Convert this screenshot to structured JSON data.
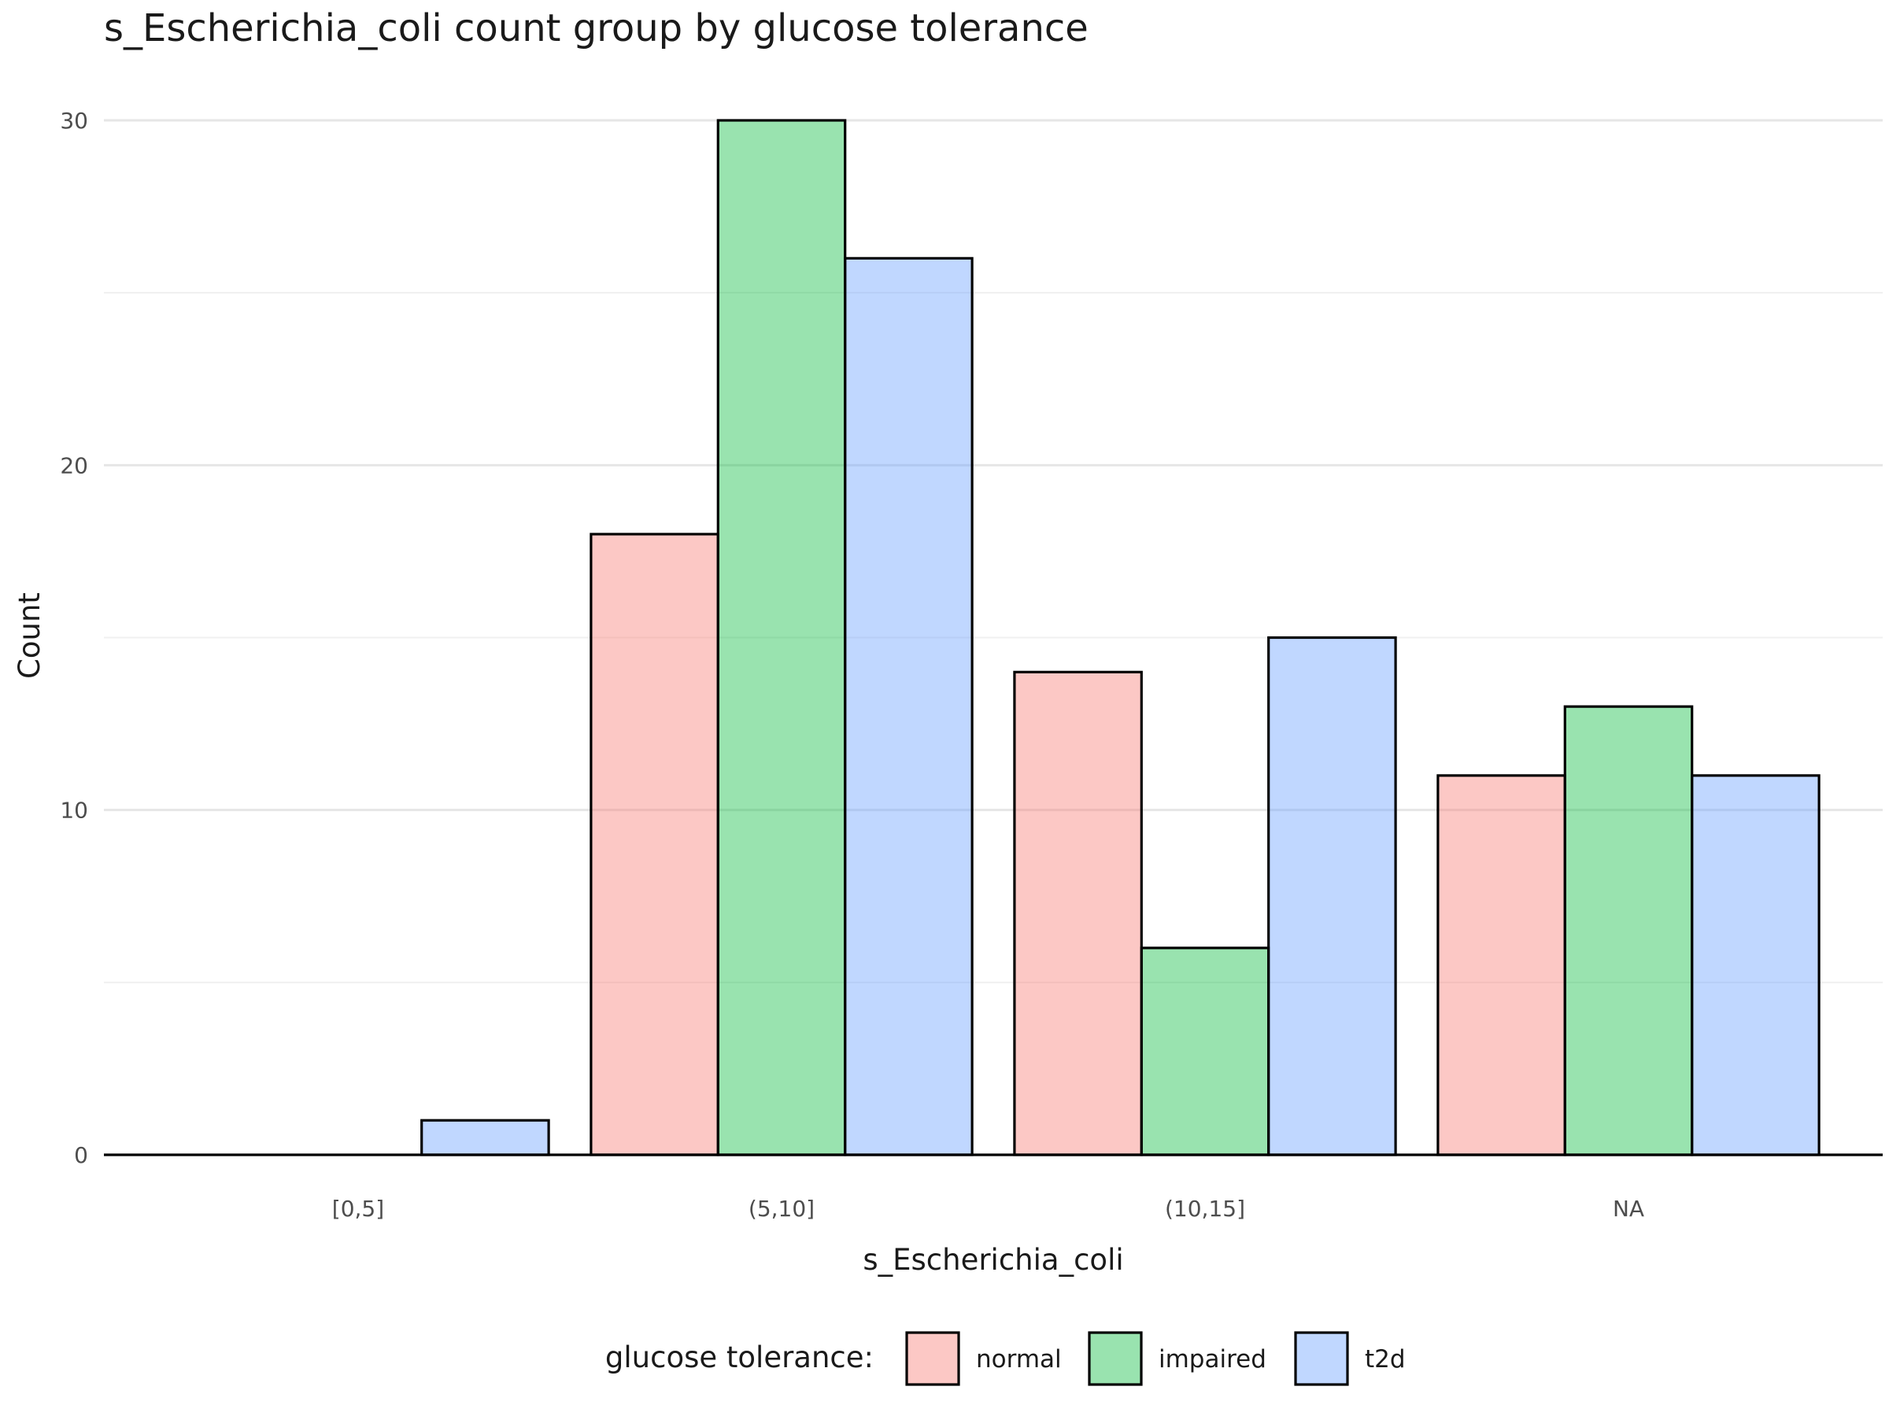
{
  "chart_data": {
    "type": "bar",
    "title": "s_Escherichia_coli count group by glucose tolerance",
    "xlabel": "s_Escherichia_coli",
    "ylabel": "Count",
    "categories": [
      "[0,5]",
      "(5,10]",
      "(10,15]",
      "NA"
    ],
    "series": [
      {
        "name": "normal",
        "color": "#F8766D",
        "values": [
          0,
          18,
          14,
          11
        ]
      },
      {
        "name": "impaired",
        "color": "#00BA38",
        "values": [
          0,
          30,
          6,
          13
        ]
      },
      {
        "name": "t2d",
        "color": "#619CFF",
        "values": [
          1,
          26,
          15,
          11
        ]
      }
    ],
    "bar_alpha": 0.4,
    "ylim": [
      0,
      30
    ],
    "y_major_ticks": [
      0,
      10,
      20,
      30
    ],
    "y_minor_ticks": [
      5,
      15,
      25
    ],
    "grid": true,
    "legend": {
      "title": "glucose tolerance:",
      "position": "bottom"
    }
  }
}
